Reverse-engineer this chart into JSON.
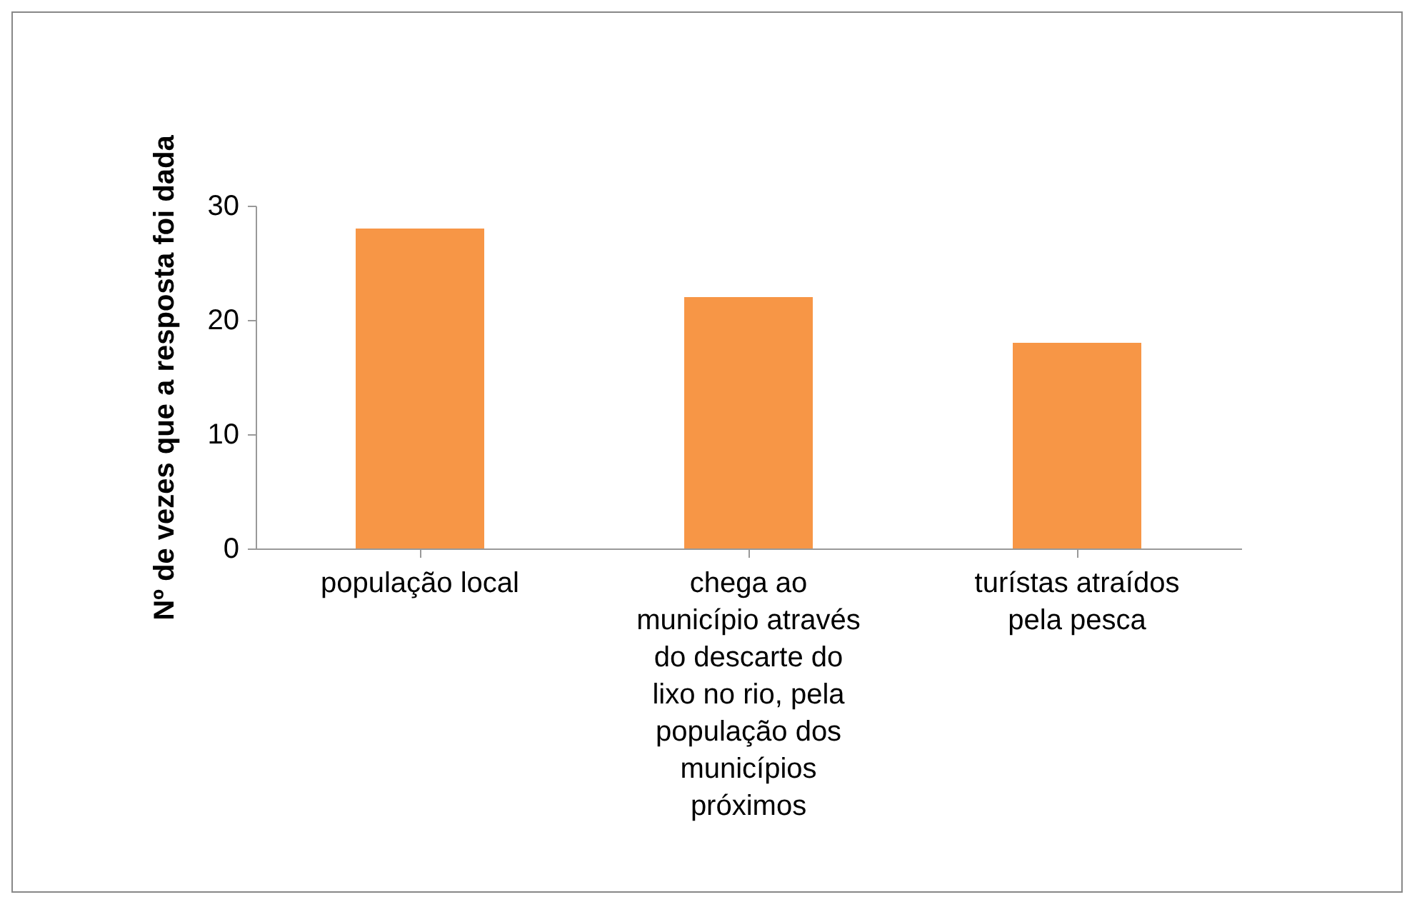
{
  "chart_data": {
    "type": "bar",
    "ylabel": "Nº de vezes que a resposta foi dada",
    "categories": [
      "população local",
      "chega ao município através do descarte do lixo no rio, pela população dos municípios próximos",
      "turístas atraídos pela pesca"
    ],
    "values": [
      28,
      22,
      18
    ],
    "color": "#f79646",
    "ylim": [
      0,
      30
    ],
    "yticks": [
      0,
      10,
      20,
      30
    ],
    "grid": false
  }
}
